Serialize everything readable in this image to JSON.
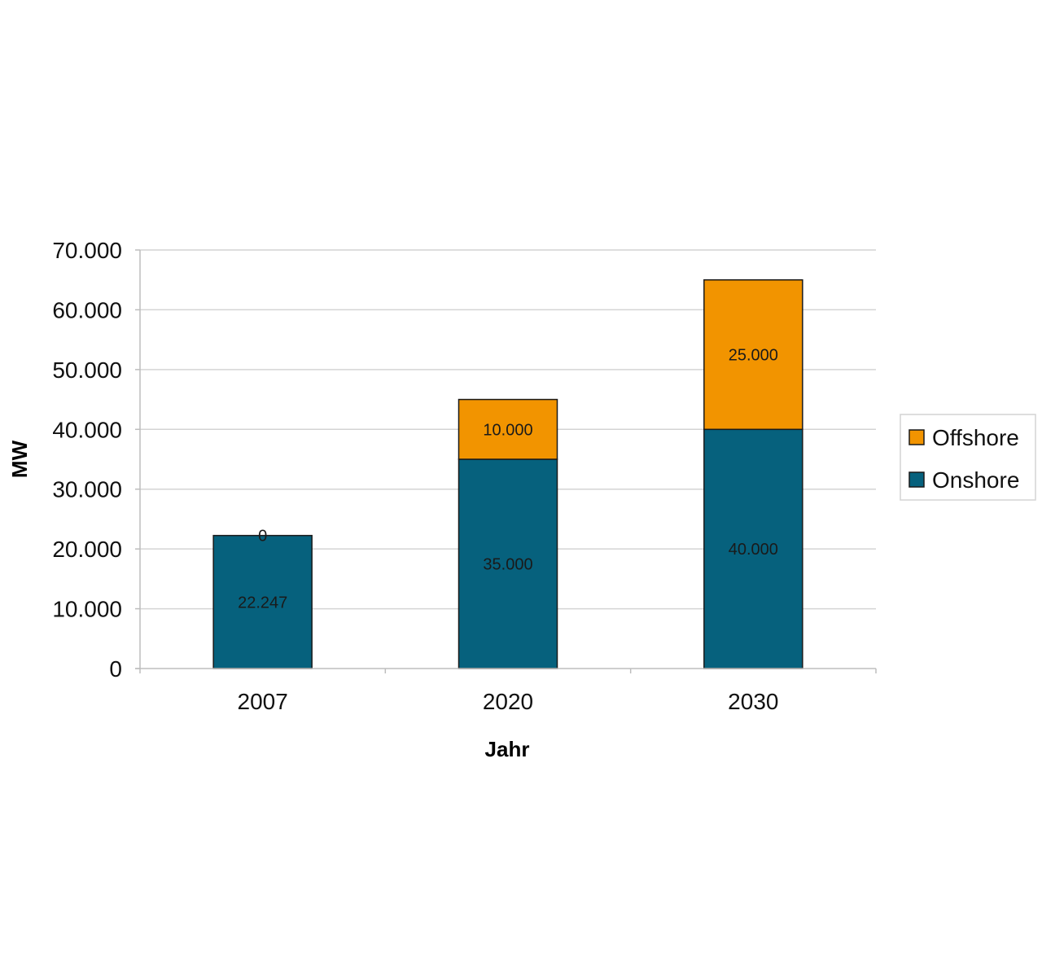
{
  "chart_data": {
    "type": "bar",
    "stacked": true,
    "categories": [
      "2007",
      "2020",
      "2030"
    ],
    "series": [
      {
        "name": "Onshore",
        "values": [
          22247,
          35000,
          40000
        ],
        "labels": [
          "22.247",
          "35.000",
          "40.000"
        ],
        "color": "#06617d"
      },
      {
        "name": "Offshore",
        "values": [
          0,
          10000,
          25000
        ],
        "labels": [
          "0",
          "10.000",
          "25.000"
        ],
        "color": "#f29400"
      }
    ],
    "xlabel": "Jahr",
    "ylabel": "MW",
    "ylim": [
      0,
      70000
    ],
    "yticks": [
      0,
      10000,
      20000,
      30000,
      40000,
      50000,
      60000,
      70000
    ],
    "ytick_labels": [
      "0",
      "10.000",
      "20.000",
      "30.000",
      "40.000",
      "50.000",
      "60.000",
      "70.000"
    ],
    "grid": true,
    "legend_position": "right",
    "legend_order": [
      "Offshore",
      "Onshore"
    ]
  }
}
